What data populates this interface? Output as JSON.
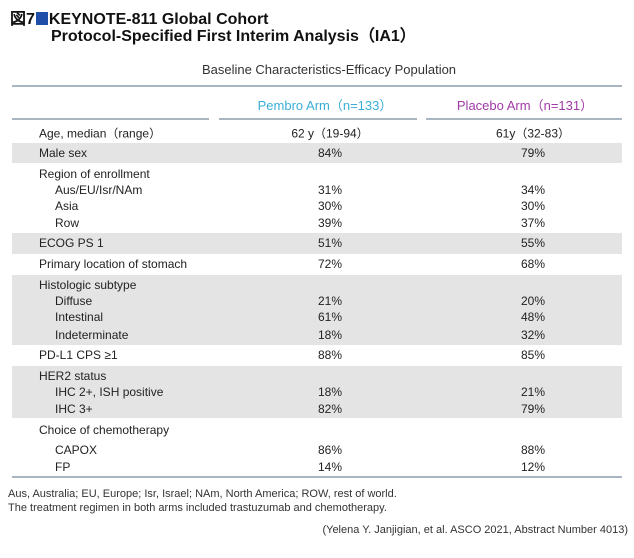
{
  "title": {
    "figure_label": "図7",
    "line1": "KEYNOTE-811 Global Cohort",
    "line2": "Protocol-Specified First Interim Analysis（IA1）"
  },
  "subtitle": "Baseline Characteristics-Efficacy Population",
  "colors": {
    "pembro": "#3aaed6",
    "placebo": "#a23aa6",
    "marker": "#1f4ea8",
    "band": "#e4e4e4"
  },
  "columns": {
    "pembro": "Pembro Arm（n=133）",
    "placebo": "Placebo Arm（n=131）"
  },
  "rows": [
    {
      "label": "Age, median（range）",
      "pembro": "62 y（19-94）",
      "placebo": "61y（32-83）"
    },
    {
      "label": "Male sex",
      "pembro": "84%",
      "placebo": "79%"
    },
    {
      "label": "Region of enrollment",
      "pembro": "",
      "placebo": ""
    },
    {
      "label": "Aus/EU/Isr/NAm",
      "pembro": "31%",
      "placebo": "34%"
    },
    {
      "label": "Asia",
      "pembro": "30%",
      "placebo": "30%"
    },
    {
      "label": "Row",
      "pembro": "39%",
      "placebo": "37%"
    },
    {
      "label": "ECOG PS 1",
      "pembro": "51%",
      "placebo": "55%"
    },
    {
      "label": "Primary location of stomach",
      "pembro": "72%",
      "placebo": "68%"
    },
    {
      "label": "Histologic subtype",
      "pembro": "",
      "placebo": ""
    },
    {
      "label": "Diffuse",
      "pembro": "21%",
      "placebo": "20%"
    },
    {
      "label": "Intestinal",
      "pembro": "61%",
      "placebo": "48%"
    },
    {
      "label": "Indeterminate",
      "pembro": "18%",
      "placebo": "32%"
    },
    {
      "label": "PD-L1 CPS ≥1",
      "pembro": "88%",
      "placebo": "85%"
    },
    {
      "label": "HER2 status",
      "pembro": "",
      "placebo": ""
    },
    {
      "label": "IHC 2+, ISH positive",
      "pembro": "18%",
      "placebo": "21%"
    },
    {
      "label": "IHC 3+",
      "pembro": "82%",
      "placebo": "79%"
    },
    {
      "label": "Choice of chemotherapy",
      "pembro": "",
      "placebo": ""
    },
    {
      "label": "CAPOX",
      "pembro": "86%",
      "placebo": "88%"
    },
    {
      "label": "FP",
      "pembro": "14%",
      "placebo": "12%"
    }
  ],
  "footnotes": [
    "Aus, Australia; EU, Europe; Isr, Israel; NAm, North America; ROW, rest of world.",
    "The treatment regimen in both arms included trastuzumab and chemotherapy."
  ],
  "citation": "(Yelena Y. Janjigian, et al. ASCO 2021, Abstract Number 4013)"
}
